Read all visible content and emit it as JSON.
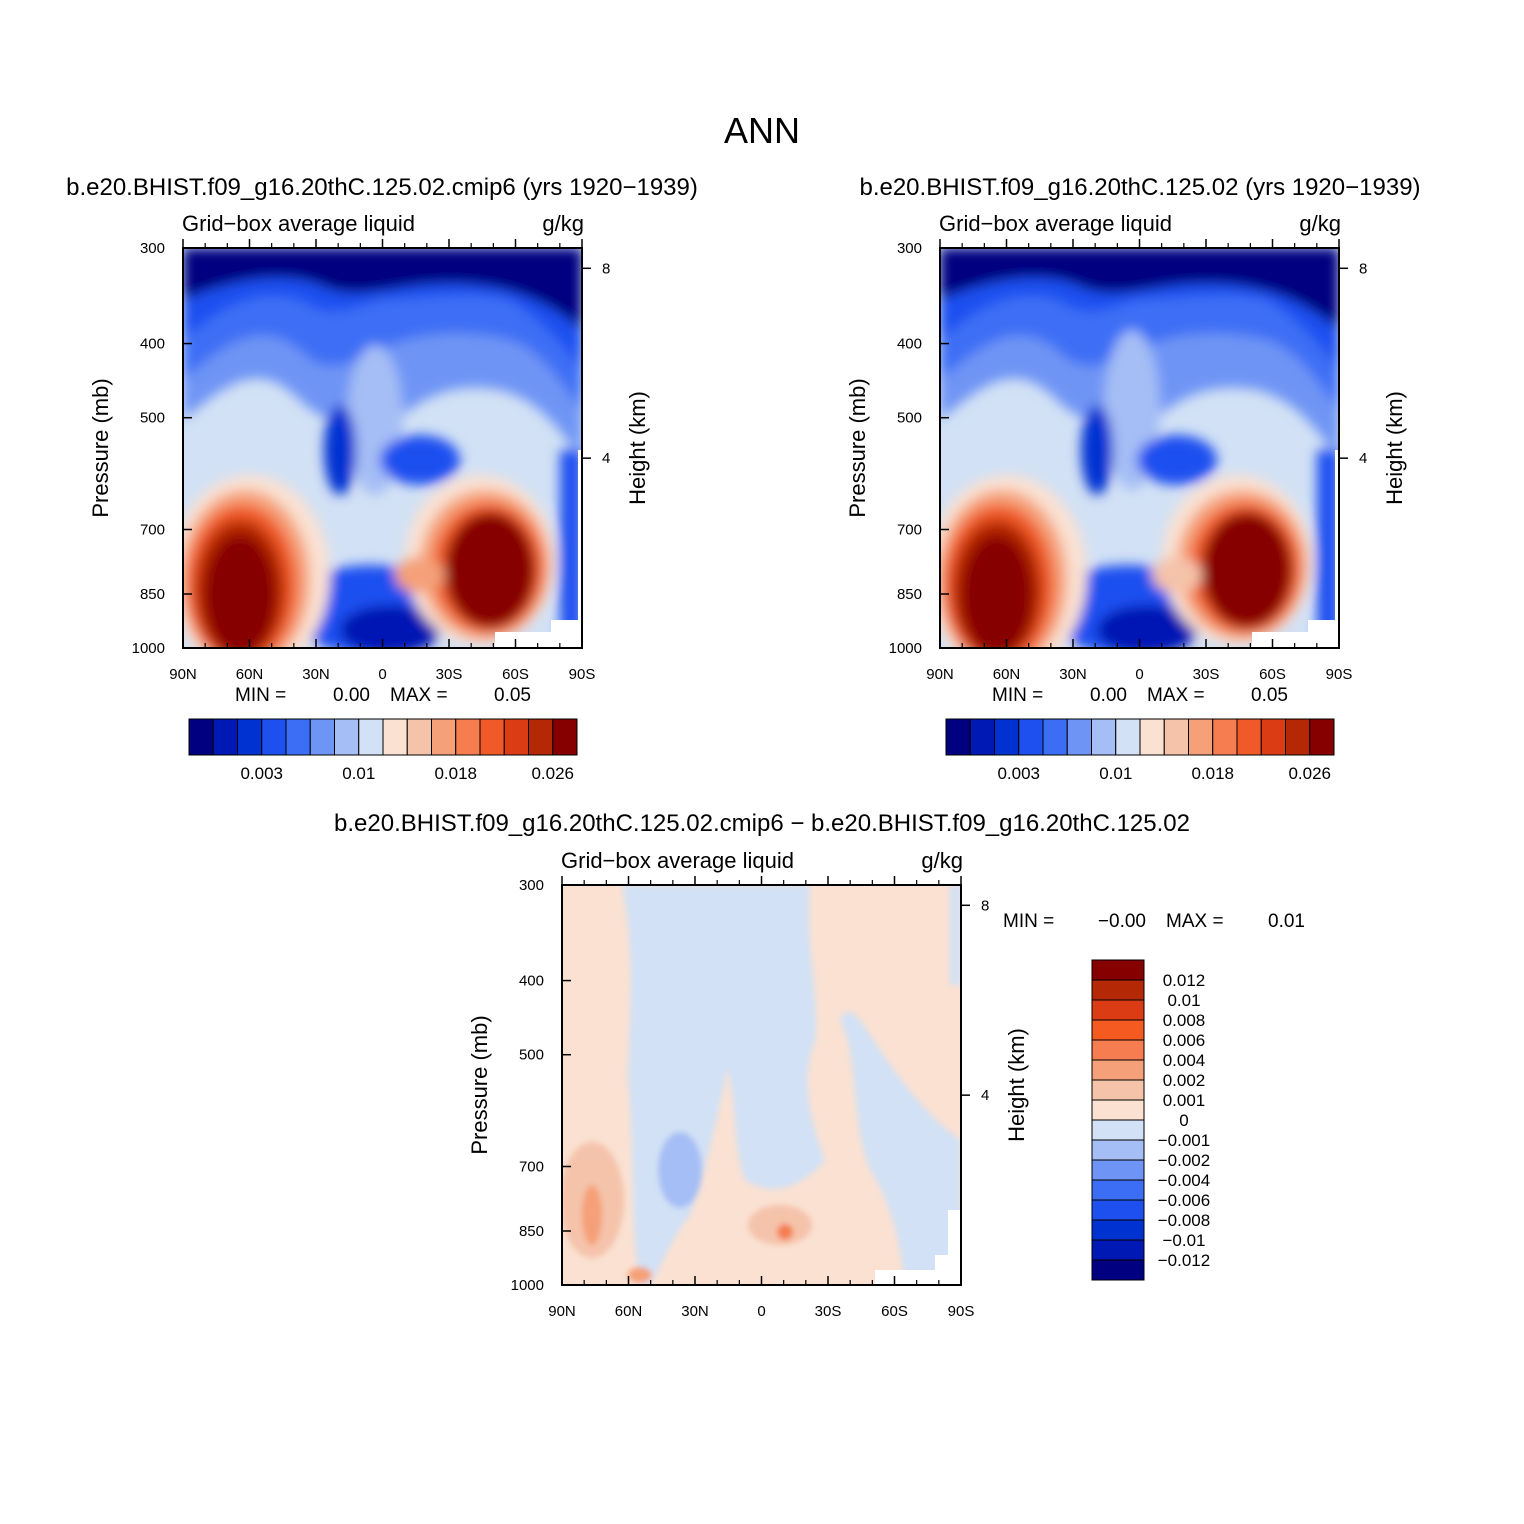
{
  "figure": {
    "title": "ANN"
  },
  "panels": [
    {
      "title": "b.e20.BHIST.f09_g16.20thC.125.02.cmip6 (yrs 1920−1939)",
      "subtitle_left": "Grid−box average liquid",
      "subtitle_right": "g/kg",
      "min_text": "MIN =",
      "min_value": "0.00",
      "max_text": "MAX =",
      "max_value": "0.05"
    },
    {
      "title": "b.e20.BHIST.f09_g16.20thC.125.02 (yrs 1920−1939)",
      "subtitle_left": "Grid−box average liquid",
      "subtitle_right": "g/kg",
      "min_text": "MIN =",
      "min_value": "0.00",
      "max_text": "MAX =",
      "max_value": "0.05"
    },
    {
      "title": "b.e20.BHIST.f09_g16.20thC.125.02.cmip6 − b.e20.BHIST.f09_g16.20thC.125.02",
      "subtitle_left": "Grid−box average liquid",
      "subtitle_right": "g/kg",
      "min_text": "MIN =",
      "min_value": "−0.00",
      "max_text": "MAX =",
      "max_value": "0.01"
    }
  ],
  "axes": {
    "ylabel": "Pressure (mb)",
    "ylabel_right": "Height (km)",
    "pressure_ticks": [
      "300",
      "400",
      "500",
      "700",
      "850",
      "1000"
    ],
    "height_ticks": [
      "8",
      "4"
    ],
    "lat_ticks": [
      "90N",
      "60N",
      "30N",
      "0",
      "30S",
      "60S",
      "90S"
    ]
  },
  "colorbar_top": {
    "labels": [
      "0.003",
      "0.01",
      "0.018",
      "0.026"
    ],
    "colors": [
      "#000080",
      "#0019b4",
      "#0032d2",
      "#1e50f0",
      "#3c6ef5",
      "#6e94f5",
      "#a5bef5",
      "#d2e1f5",
      "#fae1d2",
      "#f5c3aa",
      "#f5a078",
      "#f57d50",
      "#f05a28",
      "#dc3c14",
      "#b42805",
      "#870000"
    ]
  },
  "colorbar_diff": {
    "labels": [
      "0.012",
      "0.01",
      "0.008",
      "0.006",
      "0.004",
      "0.002",
      "0.001",
      "0",
      "−0.001",
      "−0.002",
      "−0.004",
      "−0.006",
      "−0.008",
      "−0.01",
      "−0.012"
    ],
    "colors": [
      "#870000",
      "#b42805",
      "#dc3c14",
      "#f55a20",
      "#f57d50",
      "#f5a078",
      "#f5c3aa",
      "#fae1d2",
      "#d2e1f5",
      "#a5bef5",
      "#6e94f5",
      "#3c6ef5",
      "#1e50f0",
      "#0032d2",
      "#0019b4",
      "#000080"
    ]
  },
  "chart_data": [
    {
      "type": "heatmap",
      "title": "b.e20.BHIST.f09_g16.20thC.125.02.cmip6 (yrs 1920−1939)",
      "xlabel": "",
      "ylabel": "Pressure (mb)",
      "x": [
        "90N",
        "60N",
        "30N",
        "0",
        "30S",
        "60S",
        "90S"
      ],
      "y": [
        300,
        400,
        500,
        700,
        850,
        1000
      ],
      "values": [
        [
          0.001,
          0.001,
          0.001,
          0.001,
          0.001,
          0.001,
          0.001
        ],
        [
          0.002,
          0.003,
          0.004,
          0.004,
          0.004,
          0.002,
          0.001
        ],
        [
          0.004,
          0.006,
          0.006,
          0.008,
          0.007,
          0.005,
          0.002
        ],
        [
          0.008,
          0.014,
          0.007,
          0.008,
          0.01,
          0.014,
          0.004
        ],
        [
          0.026,
          0.035,
          0.01,
          0.012,
          0.018,
          0.035,
          0.006
        ],
        [
          0.03,
          0.03,
          0.006,
          0.003,
          0.006,
          0.02,
          0.004
        ]
      ],
      "zmin": 0.0,
      "zmax": 0.05
    },
    {
      "type": "heatmap",
      "title": "b.e20.BHIST.f09_g16.20thC.125.02 (yrs 1920−1939)",
      "xlabel": "",
      "ylabel": "Pressure (mb)",
      "x": [
        "90N",
        "60N",
        "30N",
        "0",
        "30S",
        "60S",
        "90S"
      ],
      "y": [
        300,
        400,
        500,
        700,
        850,
        1000
      ],
      "values": [
        [
          0.001,
          0.001,
          0.001,
          0.001,
          0.001,
          0.001,
          0.001
        ],
        [
          0.002,
          0.003,
          0.004,
          0.004,
          0.004,
          0.002,
          0.001
        ],
        [
          0.004,
          0.006,
          0.006,
          0.008,
          0.007,
          0.005,
          0.002
        ],
        [
          0.008,
          0.014,
          0.007,
          0.008,
          0.01,
          0.014,
          0.004
        ],
        [
          0.026,
          0.035,
          0.01,
          0.012,
          0.018,
          0.035,
          0.006
        ],
        [
          0.03,
          0.03,
          0.006,
          0.003,
          0.006,
          0.02,
          0.004
        ]
      ],
      "zmin": 0.0,
      "zmax": 0.05
    },
    {
      "type": "heatmap",
      "title": "b.e20.BHIST.f09_g16.20thC.125.02.cmip6 − b.e20.BHIST.f09_g16.20thC.125.02",
      "xlabel": "",
      "ylabel": "Pressure (mb)",
      "x": [
        "90N",
        "60N",
        "30N",
        "0",
        "30S",
        "60S",
        "90S"
      ],
      "y": [
        300,
        400,
        500,
        700,
        850,
        1000
      ],
      "values": [
        [
          0.0005,
          -0.0005,
          -0.0005,
          -0.0005,
          0.0005,
          0.0005,
          0.0005
        ],
        [
          0.0005,
          -0.0005,
          -0.0005,
          -0.0005,
          0.0005,
          0.0005,
          0.0005
        ],
        [
          0.0005,
          -0.0005,
          -0.0005,
          -0.0005,
          0.0005,
          0.0005,
          0.0005
        ],
        [
          0.0005,
          -0.0005,
          -0.0005,
          0.0005,
          -0.0005,
          0.0005,
          -0.0005
        ],
        [
          0.003,
          0.001,
          -0.002,
          0.002,
          0.004,
          0.001,
          -0.0005
        ],
        [
          0.001,
          0.002,
          0.0005,
          -0.0005,
          0.0005,
          0.0005,
          -0.0005
        ]
      ],
      "zmin": -0.0,
      "zmax": 0.01
    }
  ]
}
